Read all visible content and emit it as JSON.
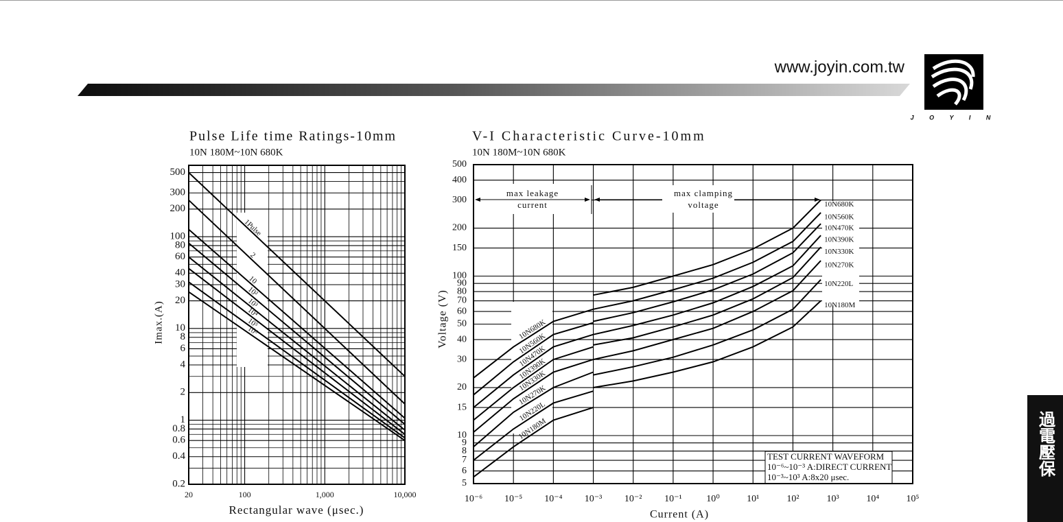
{
  "header": {
    "url": "www.joyin.com.tw",
    "logo": "J O Y I N",
    "side_tab": "過電壓保"
  },
  "chart_data": [
    {
      "type": "line",
      "title": "Pulse Life time Ratings-10mm",
      "subtitle": "10N 180M~10N 680K",
      "x_label": "Rectangular wave (μsec.)",
      "y_label": "Imax.(A)",
      "xscale": "log",
      "yscale": "log",
      "grid": true,
      "minor_grid": "both",
      "xlim": [
        20,
        10000
      ],
      "ylim": [
        0.2,
        600
      ],
      "xticks": [
        20,
        100,
        {
          "value": 1000,
          "label": "1,000"
        },
        {
          "value": 10000,
          "label": "10,000"
        }
      ],
      "yticks": [
        0.2,
        0.4,
        0.6,
        0.8,
        1,
        2,
        4,
        6,
        8,
        10,
        20,
        30,
        40,
        60,
        80,
        100,
        200,
        300,
        500
      ],
      "x": [
        20,
        10000
      ],
      "series": [
        {
          "name": "1Pulse",
          "color": "#000000",
          "values": [
            500,
            3
          ]
        },
        {
          "name": "2",
          "color": "#000000",
          "values": [
            250,
            1.5
          ]
        },
        {
          "name": "10",
          "color": "#000000",
          "values": [
            120,
            1.05
          ]
        },
        {
          "name": "10²",
          "color": "#000000",
          "values": [
            85,
            0.9
          ]
        },
        {
          "name": "10³",
          "color": "#000000",
          "values": [
            60,
            0.78
          ]
        },
        {
          "name": "10⁴",
          "color": "#000000",
          "values": [
            45,
            0.7
          ]
        },
        {
          "name": "10⁵",
          "color": "#000000",
          "values": [
            32,
            0.64
          ]
        },
        {
          "name": "10⁶",
          "color": "#000000",
          "values": [
            25,
            0.6
          ]
        }
      ]
    },
    {
      "type": "line",
      "title": "V-I Characteristic Curve-10mm",
      "subtitle": "10N 180M~10N 680K",
      "x_label": "Current (A)",
      "y_label": "Voltage (V)",
      "xscale": "log",
      "yscale": "log",
      "grid": true,
      "minor_grid": "y",
      "xlim": [
        1e-06,
        100000
      ],
      "ylim": [
        5,
        500
      ],
      "xticks": [
        {
          "value": 1e-06,
          "label": "10⁻⁶"
        },
        {
          "value": 1e-05,
          "label": "10⁻⁵"
        },
        {
          "value": 0.0001,
          "label": "10⁻⁴"
        },
        {
          "value": 0.001,
          "label": "10⁻³"
        },
        {
          "value": 0.01,
          "label": "10⁻²"
        },
        {
          "value": 0.1,
          "label": "10⁻¹"
        },
        {
          "value": 1,
          "label": "10⁰"
        },
        {
          "value": 10,
          "label": "10¹"
        },
        {
          "value": 100,
          "label": "10²"
        },
        {
          "value": 1000,
          "label": "10³"
        },
        {
          "value": 10000,
          "label": "10⁴"
        },
        {
          "value": 100000,
          "label": "10⁵"
        }
      ],
      "yticks": [
        5,
        6,
        7,
        8,
        9,
        10,
        15,
        20,
        30,
        40,
        50,
        60,
        70,
        80,
        90,
        100,
        150,
        200,
        300,
        400,
        500
      ],
      "annotations": [
        "max leakage",
        "current",
        "max clamping",
        "voltage",
        "TEST CURRENT WAVEFORM",
        "10⁻⁶~10⁻³ A:DIRECT CURRENT",
        "10⁻³~10³ A:8x20 μsec."
      ],
      "x": [
        1e-06,
        1e-05,
        0.0001,
        0.001,
        0.001,
        0.001,
        0.01,
        0.1,
        1,
        10,
        100,
        500
      ],
      "series": [
        {
          "name": "10N680K",
          "color": "#000000",
          "values": [
            23,
            36,
            52,
            62,
            null,
            76,
            85,
            100,
            118,
            148,
            200,
            300
          ]
        },
        {
          "name": "10N560K",
          "color": "#000000",
          "values": [
            18,
            29,
            43,
            51,
            null,
            62,
            70,
            82,
            97,
            122,
            165,
            250
          ]
        },
        {
          "name": "10N470K",
          "color": "#000000",
          "values": [
            15,
            24,
            36,
            43,
            null,
            52,
            59,
            69,
            82,
            103,
            140,
            213
          ]
        },
        {
          "name": "10N390K",
          "color": "#000000",
          "values": [
            12.5,
            20,
            30,
            36,
            null,
            43,
            49,
            57,
            68,
            86,
            116,
            180
          ]
        },
        {
          "name": "10N330K",
          "color": "#000000",
          "values": [
            10.5,
            17,
            25,
            30,
            null,
            37,
            41,
            48,
            57,
            72,
            98,
            152
          ]
        },
        {
          "name": "10N270K",
          "color": "#000000",
          "values": [
            8.5,
            14,
            20,
            25,
            null,
            30,
            34,
            40,
            47,
            60,
            81,
            125
          ]
        },
        {
          "name": "10N220L",
          "color": "#000000",
          "values": [
            7,
            11,
            16,
            19,
            null,
            24,
            27,
            31,
            37,
            46,
            62,
            95
          ]
        },
        {
          "name": "10N180M",
          "color": "#000000",
          "values": [
            5.5,
            8.5,
            12.5,
            15,
            null,
            20,
            22,
            25,
            29,
            36,
            48,
            70
          ]
        }
      ]
    }
  ]
}
